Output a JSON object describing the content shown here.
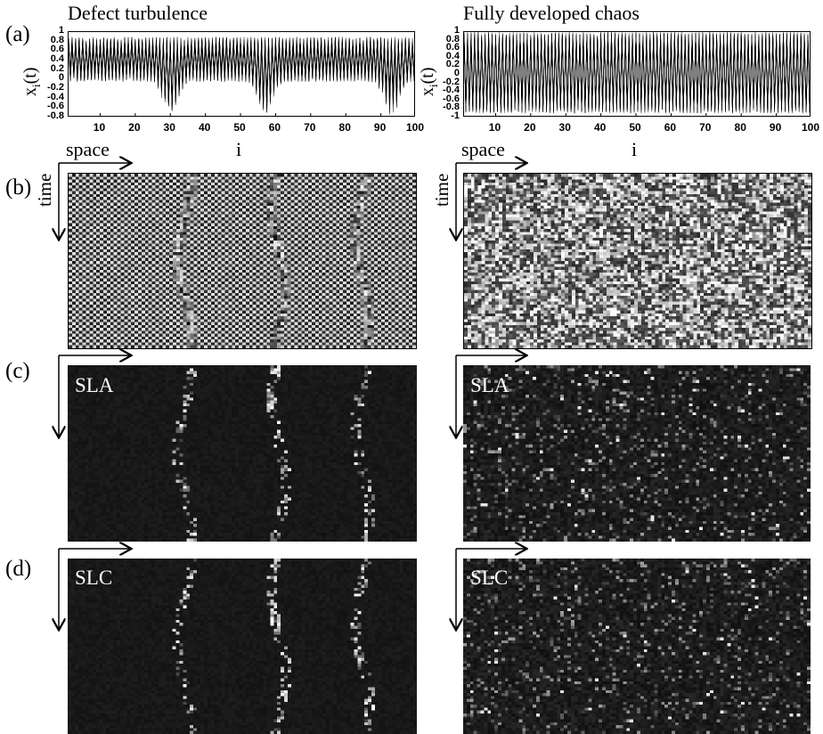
{
  "panel_letters": {
    "a": "(a)",
    "b": "(b)",
    "c": "(c)",
    "d": "(d)"
  },
  "columns": [
    {
      "title": "Defect turbulence",
      "seed": 7
    },
    {
      "title": "Fully developed chaos",
      "seed": 31
    }
  ],
  "labels": {
    "space": "space",
    "time": "time",
    "sla": "SLA",
    "slc": "SLC"
  },
  "colors": {
    "background": "#ffffff",
    "line": "#000000",
    "heatmap_bg": "#141414",
    "pattern_dark": "#1a1a1a",
    "pattern_light": "#e8e8e8"
  },
  "chart_data": [
    {
      "type": "line",
      "panel": "(a) left",
      "title": "Defect turbulence",
      "xlabel": "i",
      "ylabel": "x_i(t)",
      "xlim": [
        1,
        100
      ],
      "ylim": [
        -0.8,
        1.0
      ],
      "xticks": [
        10,
        20,
        30,
        40,
        50,
        60,
        70,
        80,
        90,
        100
      ],
      "yticks": [
        -0.8,
        -0.6,
        -0.4,
        -0.2,
        0,
        0.2,
        0.4,
        0.6,
        0.8,
        1
      ],
      "ytick_labels": [
        "-0.8",
        "-0.6",
        "-0.4",
        "-0.2",
        "0",
        "0.2",
        "0.4",
        "0.6",
        "0.8",
        "1"
      ],
      "xtick_labels": [
        "10",
        "20",
        "30",
        "40",
        "50",
        "60",
        "70",
        "80",
        "90",
        "100"
      ],
      "envelope": {
        "band_low": -0.05,
        "band_high": 0.9,
        "defect_sites": [
          30,
          57,
          93
        ],
        "defect_min": -0.8
      }
    },
    {
      "type": "line",
      "panel": "(a) right",
      "title": "Fully developed chaos",
      "xlabel": "i",
      "ylabel": "x_i(t)",
      "xlim": [
        1,
        100
      ],
      "ylim": [
        -1.0,
        1.0
      ],
      "xticks": [
        10,
        20,
        30,
        40,
        50,
        60,
        70,
        80,
        90,
        100
      ],
      "yticks": [
        -1,
        -0.8,
        -0.6,
        -0.4,
        -0.2,
        0,
        0.2,
        0.4,
        0.6,
        0.8,
        1
      ],
      "ytick_labels": [
        "-1",
        "-0.8",
        "-0.6",
        "-0.4",
        "-0.2",
        "0",
        "0.2",
        "0.4",
        "0.6",
        "0.8",
        "1"
      ],
      "xtick_labels": [
        "10",
        "20",
        "30",
        "40",
        "50",
        "60",
        "70",
        "80",
        "90",
        "100"
      ],
      "envelope": {
        "band_low": -0.9,
        "band_high": 1.0
      }
    },
    {
      "type": "heatmap",
      "panel": "(b) left",
      "xlabel": "space",
      "ylabel": "time",
      "description_values": {
        "grid": [
          100,
          60
        ],
        "defect_sites": [
          33,
          60,
          84
        ]
      }
    },
    {
      "type": "heatmap",
      "panel": "(b) right",
      "xlabel": "space",
      "ylabel": "time",
      "description_values": {
        "grid": [
          100,
          60
        ]
      }
    },
    {
      "type": "heatmap",
      "panel": "(c) left",
      "label": "SLA",
      "description_values": {
        "grid": [
          100,
          60
        ],
        "defect_sites": [
          33,
          60,
          84
        ]
      }
    },
    {
      "type": "heatmap",
      "panel": "(c) right",
      "label": "SLA",
      "description_values": {
        "grid": [
          100,
          60
        ]
      }
    },
    {
      "type": "heatmap",
      "panel": "(d) left",
      "label": "SLC",
      "description_values": {
        "grid": [
          100,
          60
        ],
        "defect_sites": [
          33,
          60,
          84
        ]
      }
    },
    {
      "type": "heatmap",
      "panel": "(d) right",
      "label": "SLC",
      "description_values": {
        "grid": [
          100,
          60
        ]
      }
    }
  ]
}
